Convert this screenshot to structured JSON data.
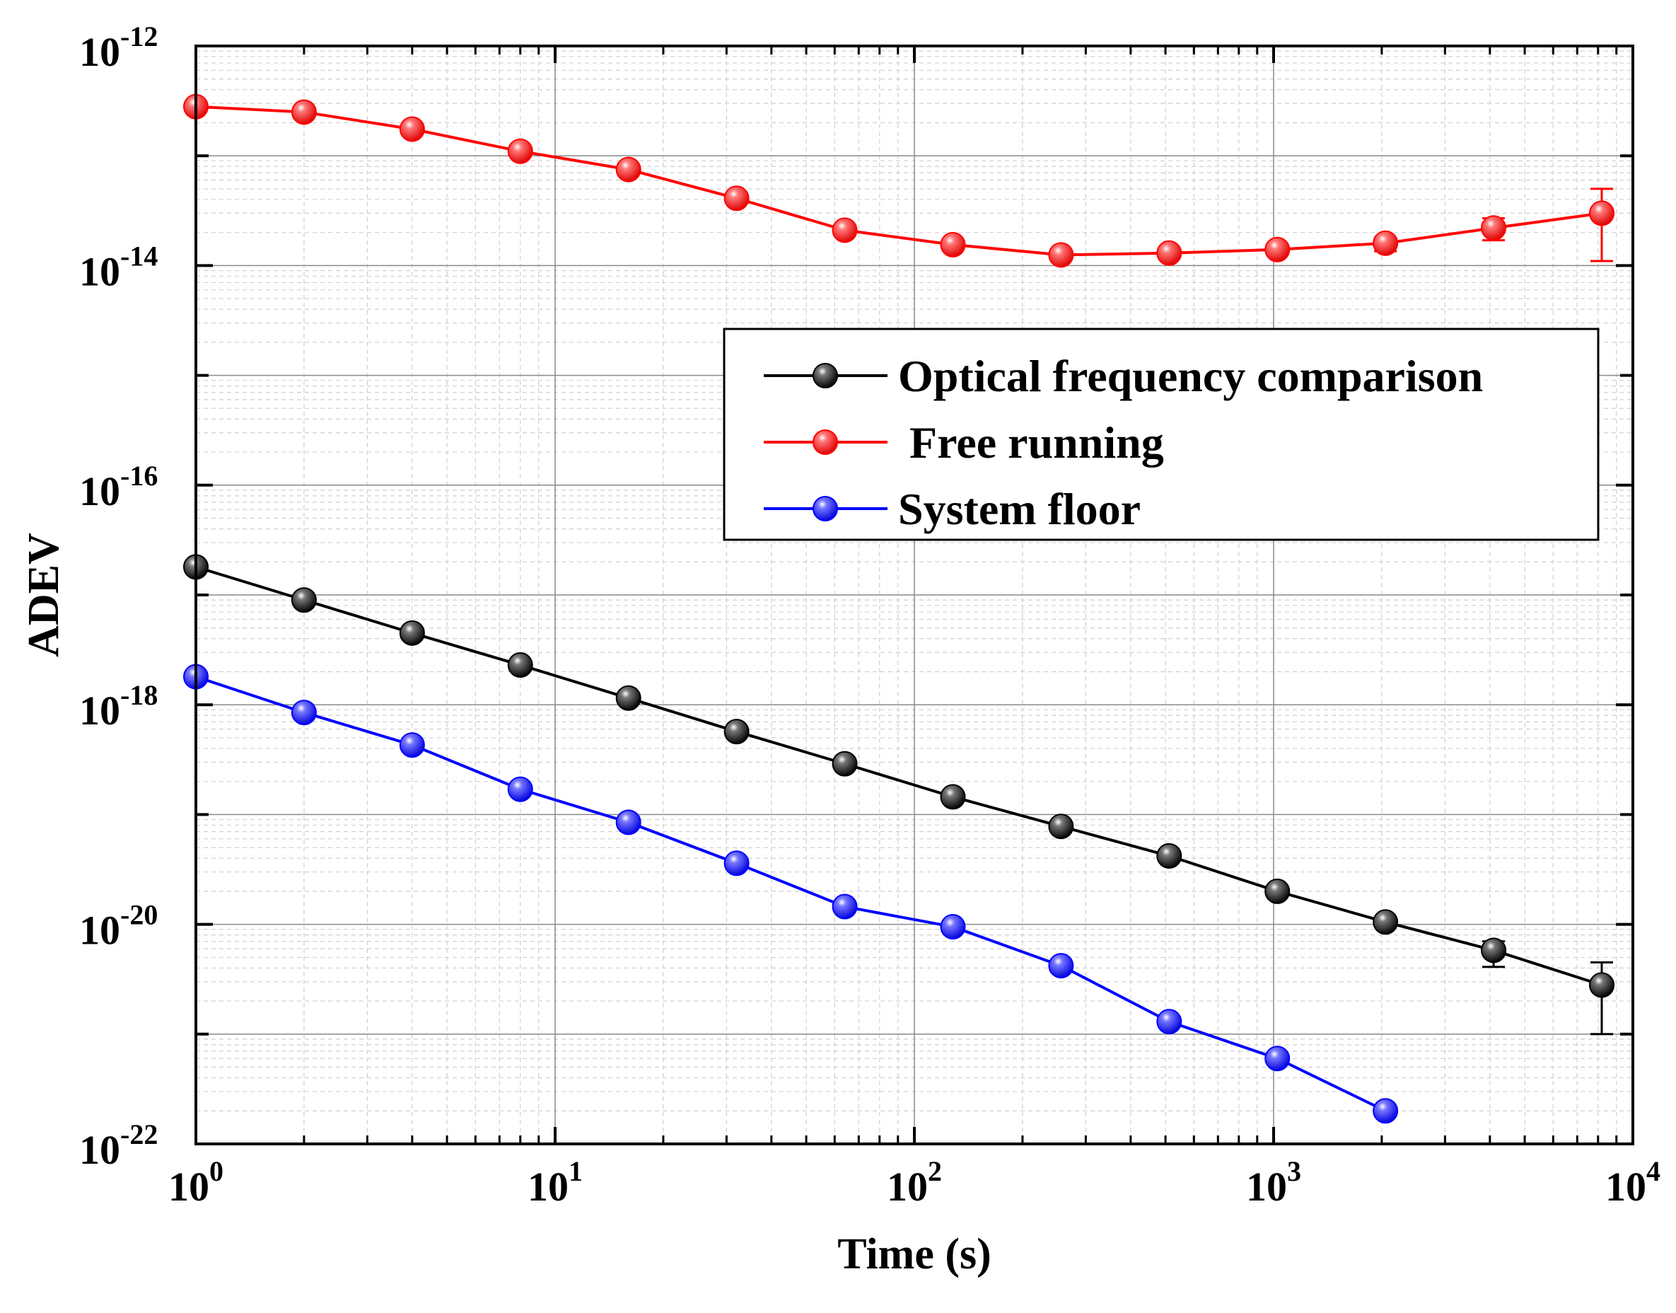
{
  "chart_data": {
    "type": "line",
    "title": "",
    "xlabel": "Time (s)",
    "ylabel": "ADEV",
    "xscale": "log",
    "yscale": "log",
    "xlim": [
      1,
      10000
    ],
    "ylim": [
      1e-22,
      1e-12
    ],
    "grid": true,
    "legend_position": "upper-right",
    "x_ticks": [
      {
        "base": "10",
        "exp": "0"
      },
      {
        "base": "10",
        "exp": "1"
      },
      {
        "base": "10",
        "exp": "2"
      },
      {
        "base": "10",
        "exp": "3"
      },
      {
        "base": "10",
        "exp": "4"
      }
    ],
    "y_ticks": [
      {
        "base": "10",
        "exp": "-22"
      },
      {
        "base": "10",
        "exp": "-20"
      },
      {
        "base": "10",
        "exp": "-18"
      },
      {
        "base": "10",
        "exp": "-16"
      },
      {
        "base": "10",
        "exp": "-14"
      },
      {
        "base": "10",
        "exp": "-12"
      }
    ],
    "series": [
      {
        "name": "Optical frequency comparison",
        "color": "#000000",
        "x": [
          1,
          2,
          4,
          8,
          16,
          32,
          64,
          128,
          256,
          512,
          1024,
          2048,
          4096,
          8192
        ],
        "y": [
          1.8e-17,
          9e-18,
          4.5e-18,
          2.3e-18,
          1.15e-18,
          5.7e-19,
          2.9e-19,
          1.45e-19,
          7.8e-20,
          4.2e-20,
          2e-20,
          1.05e-20,
          5.8e-21,
          2.8e-21
        ],
        "err_low": [
          null,
          null,
          null,
          null,
          null,
          null,
          null,
          null,
          null,
          null,
          null,
          null,
          4.1e-21,
          1e-21
        ],
        "err_high": [
          null,
          null,
          null,
          null,
          null,
          null,
          null,
          null,
          null,
          null,
          null,
          null,
          7e-21,
          4.5e-21
        ]
      },
      {
        "name": " Free running",
        "color": "#ff0000",
        "x": [
          1,
          2,
          4,
          8,
          16,
          32,
          64,
          128,
          256,
          512,
          1024,
          2048,
          4096,
          8192
        ],
        "y": [
          2.8e-13,
          2.5e-13,
          1.75e-13,
          1.1e-13,
          7.5e-14,
          4.1e-14,
          2.1e-14,
          1.55e-14,
          1.25e-14,
          1.3e-14,
          1.4e-14,
          1.6e-14,
          2.2e-14,
          3e-14
        ],
        "err_low": [
          null,
          null,
          null,
          null,
          null,
          null,
          null,
          null,
          null,
          null,
          null,
          1.35e-14,
          1.7e-14,
          1.1e-14
        ],
        "err_high": [
          null,
          null,
          null,
          null,
          null,
          null,
          null,
          null,
          null,
          null,
          null,
          1.8e-14,
          2.7e-14,
          5e-14
        ]
      },
      {
        "name": "System floor",
        "color": "#0000ff",
        "x": [
          1,
          2,
          4,
          8,
          16,
          32,
          64,
          128,
          256,
          512,
          1024,
          2048
        ],
        "y": [
          1.8e-18,
          8.5e-19,
          4.3e-19,
          1.7e-19,
          8.5e-20,
          3.6e-20,
          1.45e-20,
          9.5e-21,
          4.2e-21,
          1.3e-21,
          6e-22,
          2e-22
        ]
      }
    ]
  }
}
